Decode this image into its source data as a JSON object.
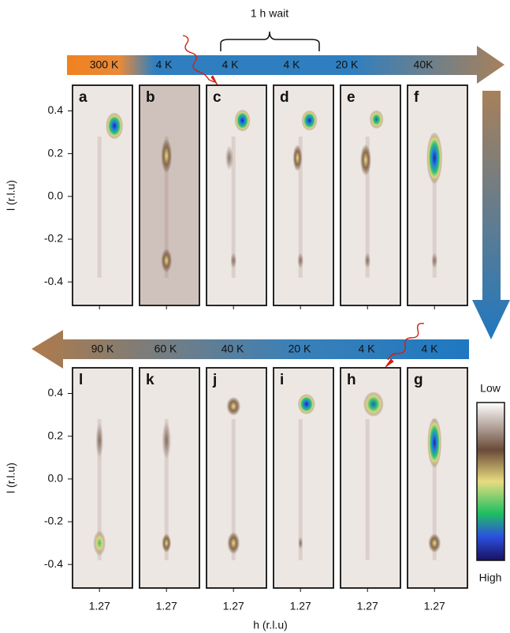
{
  "top_arrow": {
    "labels": [
      "300 K",
      "4 K",
      "4 K",
      "4 K",
      "20 K",
      "40K"
    ],
    "bracket": "1 h wait"
  },
  "bottom_arrow": {
    "labels": [
      "90 K",
      "60 K",
      "40 K",
      "20 K",
      "4 K",
      "4 K"
    ]
  },
  "rows": [
    {
      "panels": [
        "a",
        "b",
        "c",
        "d",
        "e",
        "f"
      ]
    },
    {
      "panels": [
        "l",
        "k",
        "j",
        "i",
        "h",
        "g"
      ]
    }
  ],
  "y_axis_label": "l (r.l.u)",
  "ylim": [
    -0.51,
    0.52
  ],
  "yticks": [
    0.4,
    0.2,
    {
      "value": 0,
      "label": "0.0"
    },
    -0.2,
    -0.4
  ],
  "x_tick": "1.27",
  "x_axis_label": "h  (r.l.u)",
  "colorbar": {
    "low": "Low",
    "high": "High"
  }
}
